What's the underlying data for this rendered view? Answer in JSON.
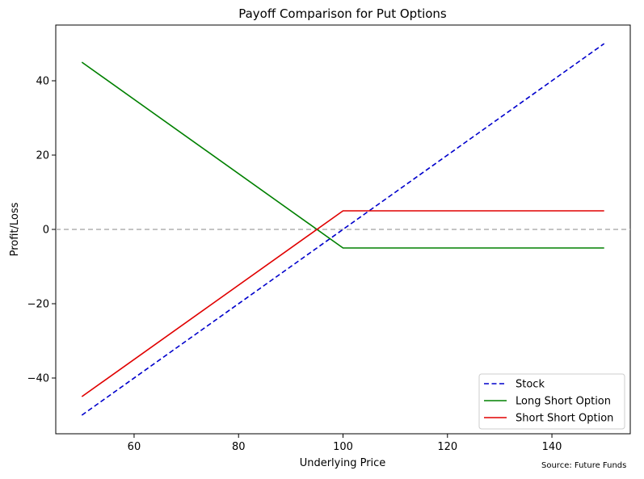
{
  "chart_data": {
    "type": "line",
    "title": "Payoff Comparison for Put Options",
    "xlabel": "Underlying Price",
    "ylabel": "Profit/Loss",
    "xlim": [
      45,
      155
    ],
    "ylim": [
      -55,
      55
    ],
    "xticks": [
      60,
      80,
      100,
      120,
      140
    ],
    "yticks": [
      -40,
      -20,
      0,
      20,
      40
    ],
    "grid": false,
    "legend_position": "lower-right",
    "reference_line": {
      "y": 0,
      "color": "#b0b0b0",
      "style": "dashed"
    },
    "series": [
      {
        "name": "Stock",
        "color": "#0000cc",
        "style": "dashed",
        "x": [
          50,
          150
        ],
        "y": [
          -50,
          50
        ]
      },
      {
        "name": "Long Short Option",
        "color": "#008000",
        "style": "solid",
        "x": [
          50,
          100,
          150
        ],
        "y": [
          45,
          -5,
          -5
        ]
      },
      {
        "name": "Short Short Option",
        "color": "#e00000",
        "style": "solid",
        "x": [
          50,
          100,
          150
        ],
        "y": [
          -45,
          5,
          5
        ]
      }
    ]
  },
  "source_note": "Source: Future Funds"
}
